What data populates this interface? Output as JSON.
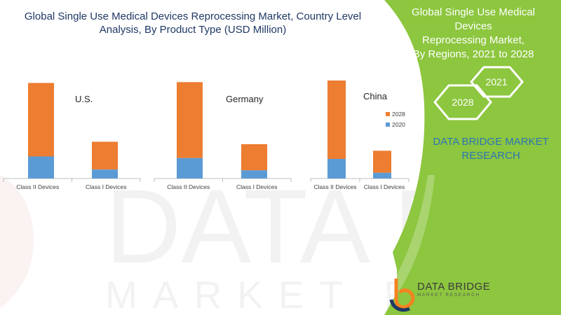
{
  "title": {
    "line1": "Global Single Use Medical Devices Reprocessing Market, Country Level",
    "line2": "Analysis, By Product Type (USD Million)"
  },
  "right_panel": {
    "title_line1": "Global Single Use Medical Devices",
    "title_line2": "Reprocessing Market,",
    "title_line3": "By Regions, 2021 to 2028",
    "hex_2021": "2021",
    "hex_2028": "2028",
    "brand_line1": "DATA BRIDGE MARKET",
    "brand_line2": "RESEARCH",
    "green": "#8dc63f"
  },
  "logo": {
    "name": "DATA BRIDGE",
    "tagline": "MARKET RESEARCH"
  },
  "watermark": {
    "line1": "DATA BRIDGE",
    "line2": "MARKET RESEARCH"
  },
  "colors": {
    "series_2020": "#5b9bd5",
    "series_2028": "#ed7d31"
  },
  "chart_data": [
    {
      "type": "bar",
      "stacked": true,
      "title": "U.S.",
      "categories": [
        "Class II Devices",
        "Class I Devices"
      ],
      "series": [
        {
          "name": "2020",
          "values": [
            27,
            11
          ]
        },
        {
          "name": "2028",
          "values": [
            90,
            34
          ]
        }
      ],
      "ylim": [
        0,
        120
      ]
    },
    {
      "type": "bar",
      "stacked": true,
      "title": "Germany",
      "categories": [
        "Class II Devices",
        "Class I Devices"
      ],
      "series": [
        {
          "name": "2020",
          "values": [
            25,
            10
          ]
        },
        {
          "name": "2028",
          "values": [
            93,
            32
          ]
        }
      ],
      "ylim": [
        0,
        120
      ]
    },
    {
      "type": "bar",
      "stacked": true,
      "title": "China",
      "categories": [
        "Class II Devices",
        "Class I Devices"
      ],
      "series": [
        {
          "name": "2020",
          "values": [
            24,
            7
          ]
        },
        {
          "name": "2028",
          "values": [
            96,
            27
          ]
        }
      ],
      "ylim": [
        0,
        120
      ],
      "legend": [
        "2028",
        "2020"
      ]
    }
  ]
}
